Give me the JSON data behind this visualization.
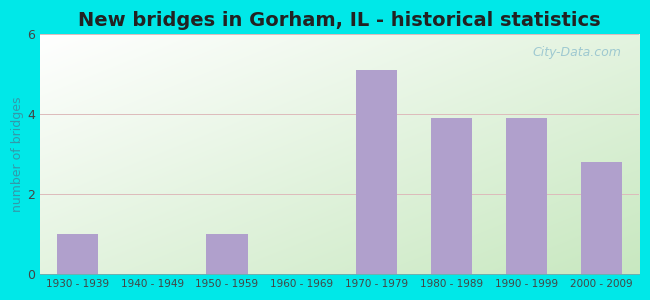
{
  "title": "New bridges in Gorham, IL - historical statistics",
  "categories": [
    "1930 - 1939",
    "1940 - 1949",
    "1950 - 1959",
    "1960 - 1969",
    "1970 - 1979",
    "1980 - 1989",
    "1990 - 1999",
    "2000 - 2009"
  ],
  "values": [
    1,
    0,
    1,
    0,
    5.1,
    3.9,
    3.9,
    2.8
  ],
  "bar_color": "#b0a0cc",
  "ylabel": "number of bridges",
  "ylim": [
    0,
    6
  ],
  "yticks": [
    0,
    2,
    4,
    6
  ],
  "background_color": "#00e8e8",
  "plot_bg_top_left": "#ffffff",
  "plot_bg_bottom_right": "#c8e8c0",
  "title_fontsize": 14,
  "ylabel_color": "#3399aa",
  "tick_color": "#444444",
  "watermark_text": "City-Data.com",
  "grid_color": "#ddbbbb",
  "title_color": "#222222"
}
